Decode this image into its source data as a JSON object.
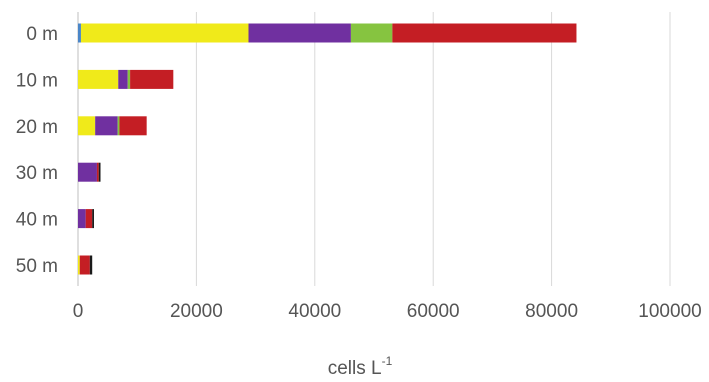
{
  "chart_data": {
    "type": "bar",
    "orientation": "horizontal",
    "stacked": true,
    "title": "",
    "xlabel": "cells L",
    "xlabel_superscript": "-1",
    "ylabel": "",
    "xlim": [
      0,
      100000
    ],
    "x_ticks": [
      "0",
      "20000",
      "40000",
      "60000",
      "80000",
      "100000"
    ],
    "x_tick_values": [
      0,
      20000,
      40000,
      60000,
      80000,
      100000
    ],
    "grid": "vertical",
    "legend": "none",
    "categories": [
      "0 m",
      "10 m",
      "20 m",
      "30 m",
      "40 m",
      "50 m"
    ],
    "series": [
      {
        "color": "#4a86c8",
        "values": [
          500,
          0,
          0,
          0,
          0,
          0
        ]
      },
      {
        "color": "#f0ea1a",
        "values": [
          28300,
          6800,
          2900,
          0,
          0,
          300
        ]
      },
      {
        "color": "#7030a0",
        "values": [
          17300,
          1600,
          3800,
          3200,
          1300,
          0
        ]
      },
      {
        "color": "#86c440",
        "values": [
          7000,
          400,
          300,
          0,
          0,
          0
        ]
      },
      {
        "color": "#c41e24",
        "values": [
          31100,
          7300,
          4600,
          300,
          1100,
          1700
        ]
      },
      {
        "color": "#1a1a1a",
        "values": [
          0,
          0,
          0,
          300,
          300,
          400
        ]
      }
    ]
  }
}
